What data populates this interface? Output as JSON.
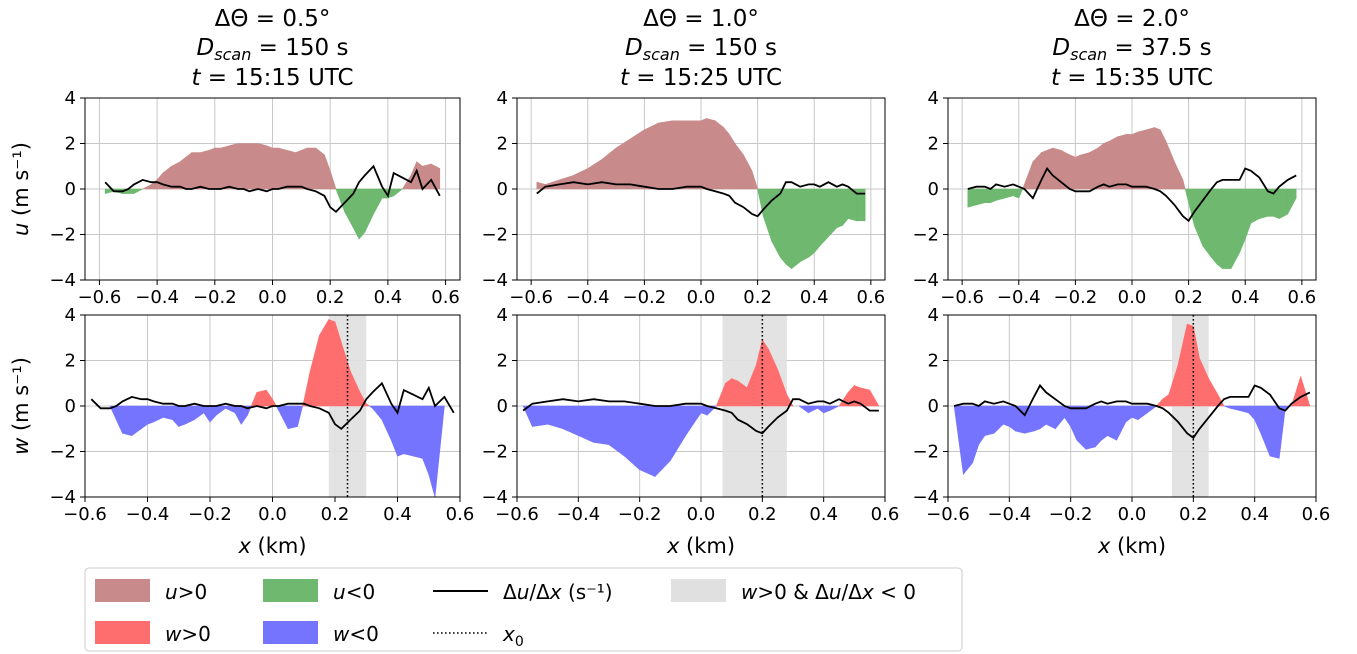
{
  "chart_data": [
    {
      "type": "area",
      "panel": "u-0.5",
      "title": [
        "ΔΘ = 0.5°",
        "Dscan = 150 s",
        "t = 15:15 UTC"
      ],
      "ylabel": "u (m s⁻¹)",
      "xlim": [
        -0.65,
        0.65
      ],
      "ylim": [
        -4,
        4
      ],
      "xticks": [
        -0.6,
        -0.4,
        -0.2,
        0.0,
        0.2,
        0.4,
        0.6
      ],
      "yticks": [
        4,
        2,
        0,
        -2,
        -4
      ],
      "x": [
        -0.58,
        -0.55,
        -0.52,
        -0.5,
        -0.48,
        -0.45,
        -0.42,
        -0.4,
        -0.38,
        -0.35,
        -0.32,
        -0.3,
        -0.28,
        -0.25,
        -0.22,
        -0.2,
        -0.18,
        -0.15,
        -0.12,
        -0.1,
        -0.08,
        -0.05,
        -0.02,
        0.0,
        0.02,
        0.05,
        0.08,
        0.1,
        0.12,
        0.15,
        0.18,
        0.2,
        0.22,
        0.25,
        0.28,
        0.3,
        0.32,
        0.35,
        0.38,
        0.4,
        0.42,
        0.45,
        0.48,
        0.5,
        0.52,
        0.55,
        0.58
      ],
      "series": [
        {
          "key": "u",
          "values": [
            -0.2,
            -0.1,
            -0.2,
            -0.2,
            -0.2,
            0.0,
            0.2,
            0.4,
            0.7,
            1.0,
            1.2,
            1.4,
            1.6,
            1.6,
            1.7,
            1.8,
            1.8,
            1.9,
            2.0,
            2.0,
            2.0,
            2.0,
            1.9,
            1.8,
            1.8,
            1.7,
            1.6,
            1.7,
            1.8,
            1.8,
            1.5,
            0.8,
            0.0,
            -1.0,
            -1.7,
            -2.2,
            -1.9,
            -1.1,
            -0.4,
            -0.4,
            -0.3,
            0.0,
            0.6,
            1.2,
            1.0,
            1.1,
            0.9
          ]
        },
        {
          "key": "dudx",
          "values": [
            0.3,
            -0.1,
            -0.1,
            0.0,
            0.2,
            0.4,
            0.3,
            0.3,
            0.2,
            0.1,
            0.1,
            0.0,
            0.0,
            0.1,
            0.0,
            0.0,
            0.0,
            0.1,
            0.0,
            0.0,
            -0.1,
            0.0,
            -0.1,
            0.0,
            0.0,
            0.1,
            0.1,
            0.1,
            0.0,
            -0.1,
            -0.3,
            -0.8,
            -1.0,
            -0.6,
            -0.2,
            0.3,
            0.6,
            1.0,
            0.1,
            -0.3,
            0.7,
            0.5,
            0.3,
            0.8,
            0.0,
            0.4,
            -0.3
          ]
        }
      ]
    },
    {
      "type": "area",
      "panel": "u-1.0",
      "title": [
        "ΔΘ = 1.0°",
        "Dscan = 150 s",
        "t = 15:25 UTC"
      ],
      "xlim": [
        -0.65,
        0.65
      ],
      "ylim": [
        -4,
        4
      ],
      "xticks": [
        -0.6,
        -0.4,
        -0.2,
        0.0,
        0.2,
        0.4,
        0.6
      ],
      "yticks": [
        4,
        2,
        0,
        -2,
        -4
      ],
      "x": [
        -0.58,
        -0.55,
        -0.5,
        -0.45,
        -0.4,
        -0.35,
        -0.3,
        -0.25,
        -0.2,
        -0.15,
        -0.1,
        -0.05,
        0.0,
        0.02,
        0.05,
        0.08,
        0.1,
        0.12,
        0.15,
        0.18,
        0.2,
        0.22,
        0.25,
        0.28,
        0.3,
        0.32,
        0.35,
        0.38,
        0.4,
        0.42,
        0.45,
        0.48,
        0.5,
        0.52,
        0.55,
        0.58
      ],
      "series": [
        {
          "key": "u",
          "values": [
            0.3,
            0.2,
            0.4,
            0.6,
            0.9,
            1.3,
            1.8,
            2.2,
            2.6,
            2.9,
            3.0,
            3.0,
            3.0,
            3.1,
            3.0,
            2.7,
            2.4,
            2.0,
            1.5,
            0.8,
            0.0,
            -1.2,
            -2.3,
            -3.0,
            -3.3,
            -3.5,
            -3.2,
            -3.0,
            -2.8,
            -2.5,
            -2.1,
            -1.7,
            -1.6,
            -1.3,
            -1.4,
            -1.4
          ]
        },
        {
          "key": "dudx",
          "values": [
            -0.2,
            0.1,
            0.2,
            0.3,
            0.2,
            0.3,
            0.2,
            0.2,
            0.1,
            0.0,
            0.0,
            0.1,
            0.1,
            0.0,
            -0.1,
            -0.2,
            -0.3,
            -0.6,
            -0.8,
            -1.1,
            -1.2,
            -0.9,
            -0.5,
            -0.2,
            0.3,
            0.3,
            0.1,
            0.2,
            0.2,
            0.1,
            0.3,
            0.1,
            0.2,
            0.1,
            -0.2,
            -0.2
          ]
        }
      ]
    },
    {
      "type": "area",
      "panel": "u-2.0",
      "title": [
        "ΔΘ = 2.0°",
        "Dscan = 37.5 s",
        "t = 15:35 UTC"
      ],
      "xlim": [
        -0.65,
        0.65
      ],
      "ylim": [
        -4,
        4
      ],
      "xticks": [
        -0.6,
        -0.4,
        -0.2,
        0.0,
        0.2,
        0.4,
        0.6
      ],
      "yticks": [
        4,
        2,
        0,
        -2,
        -4
      ],
      "x": [
        -0.58,
        -0.55,
        -0.52,
        -0.5,
        -0.48,
        -0.45,
        -0.42,
        -0.4,
        -0.38,
        -0.35,
        -0.32,
        -0.3,
        -0.28,
        -0.25,
        -0.22,
        -0.2,
        -0.18,
        -0.15,
        -0.12,
        -0.1,
        -0.08,
        -0.05,
        -0.02,
        0.0,
        0.02,
        0.05,
        0.08,
        0.1,
        0.12,
        0.15,
        0.18,
        0.2,
        0.22,
        0.25,
        0.28,
        0.3,
        0.32,
        0.35,
        0.38,
        0.4,
        0.42,
        0.45,
        0.48,
        0.5,
        0.52,
        0.55,
        0.58
      ],
      "series": [
        {
          "key": "u",
          "values": [
            -0.8,
            -0.7,
            -0.6,
            -0.6,
            -0.5,
            -0.4,
            -0.3,
            -0.4,
            0.2,
            1.2,
            1.6,
            1.7,
            1.8,
            1.7,
            1.5,
            1.4,
            1.5,
            1.6,
            1.8,
            2.0,
            2.1,
            2.3,
            2.4,
            2.4,
            2.5,
            2.6,
            2.7,
            2.6,
            2.1,
            1.2,
            0.4,
            -0.6,
            -1.6,
            -2.5,
            -3.0,
            -3.3,
            -3.5,
            -3.5,
            -2.8,
            -2.2,
            -1.5,
            -1.3,
            -1.2,
            -1.2,
            -1.3,
            -1.1,
            -0.4
          ]
        },
        {
          "key": "dudx",
          "values": [
            0.0,
            0.1,
            0.1,
            0.0,
            0.2,
            0.1,
            0.2,
            0.1,
            0.0,
            -0.4,
            0.4,
            0.9,
            0.6,
            0.3,
            0.0,
            -0.1,
            -0.1,
            -0.1,
            0.1,
            0.2,
            0.1,
            0.2,
            0.2,
            0.1,
            0.1,
            0.1,
            0.0,
            -0.1,
            -0.3,
            -0.7,
            -1.2,
            -1.4,
            -1.0,
            -0.5,
            0.0,
            0.3,
            0.4,
            0.4,
            0.4,
            0.9,
            0.8,
            0.5,
            -0.1,
            -0.2,
            0.1,
            0.4,
            0.6
          ]
        }
      ]
    },
    {
      "type": "area",
      "panel": "w-0.5",
      "ylabel": "w (m s⁻¹)",
      "xlabel": "x (km)",
      "xlim": [
        -0.6,
        0.6
      ],
      "ylim": [
        -4,
        4
      ],
      "xticks": [
        -0.6,
        -0.4,
        -0.2,
        0.0,
        0.2,
        0.4,
        0.6
      ],
      "yticks": [
        4,
        2,
        0,
        -2,
        -4
      ],
      "shaded_x": [
        0.18,
        0.3
      ],
      "x0": 0.24,
      "x": [
        -0.58,
        -0.55,
        -0.52,
        -0.5,
        -0.48,
        -0.45,
        -0.42,
        -0.4,
        -0.38,
        -0.35,
        -0.32,
        -0.3,
        -0.28,
        -0.25,
        -0.22,
        -0.2,
        -0.18,
        -0.15,
        -0.12,
        -0.1,
        -0.08,
        -0.05,
        -0.02,
        0.0,
        0.02,
        0.05,
        0.08,
        0.1,
        0.12,
        0.15,
        0.18,
        0.2,
        0.22,
        0.25,
        0.28,
        0.3,
        0.32,
        0.35,
        0.38,
        0.4,
        0.42,
        0.45,
        0.48,
        0.5,
        0.52,
        0.55,
        0.58
      ],
      "series": [
        {
          "key": "w",
          "values": [
            0.0,
            0.0,
            0.0,
            -0.6,
            -1.2,
            -1.3,
            -1.0,
            -0.8,
            -0.7,
            -0.5,
            -0.6,
            -0.9,
            -0.8,
            -0.6,
            -0.3,
            -0.7,
            -0.4,
            -0.1,
            -0.3,
            -0.8,
            -0.4,
            0.6,
            0.7,
            0.3,
            -0.2,
            -1.0,
            -0.9,
            0.2,
            1.5,
            3.1,
            3.8,
            3.7,
            2.8,
            1.5,
            0.6,
            0.1,
            -0.1,
            -0.6,
            -1.5,
            -2.2,
            -2.1,
            -2.2,
            -2.3,
            -3.0,
            -4.0,
            0.0,
            0.0
          ]
        },
        {
          "key": "dudx",
          "values": [
            0.3,
            -0.1,
            -0.1,
            0.0,
            0.2,
            0.4,
            0.3,
            0.3,
            0.2,
            0.1,
            0.1,
            0.0,
            0.0,
            0.1,
            0.0,
            0.0,
            0.0,
            0.1,
            0.0,
            0.0,
            -0.1,
            0.0,
            -0.1,
            0.0,
            0.0,
            0.1,
            0.1,
            0.1,
            0.0,
            -0.1,
            -0.3,
            -0.8,
            -1.0,
            -0.6,
            -0.2,
            0.3,
            0.6,
            1.0,
            0.1,
            -0.3,
            0.7,
            0.5,
            0.3,
            0.8,
            0.0,
            0.4,
            -0.3
          ]
        }
      ]
    },
    {
      "type": "area",
      "panel": "w-1.0",
      "xlabel": "x (km)",
      "xlim": [
        -0.6,
        0.6
      ],
      "ylim": [
        -4,
        4
      ],
      "xticks": [
        -0.6,
        -0.4,
        -0.2,
        0.0,
        0.2,
        0.4,
        0.6
      ],
      "yticks": [
        4,
        2,
        0,
        -2,
        -4
      ],
      "shaded_x": [
        0.07,
        0.28
      ],
      "x0": 0.2,
      "x": [
        -0.58,
        -0.55,
        -0.5,
        -0.45,
        -0.4,
        -0.35,
        -0.3,
        -0.25,
        -0.2,
        -0.15,
        -0.1,
        -0.05,
        0.0,
        0.02,
        0.05,
        0.08,
        0.1,
        0.12,
        0.15,
        0.18,
        0.2,
        0.22,
        0.25,
        0.28,
        0.3,
        0.32,
        0.35,
        0.38,
        0.4,
        0.42,
        0.45,
        0.48,
        0.5,
        0.52,
        0.55,
        0.58
      ],
      "series": [
        {
          "key": "w",
          "values": [
            0.0,
            -0.9,
            -0.8,
            -1.0,
            -1.3,
            -1.6,
            -1.7,
            -2.2,
            -2.8,
            -3.1,
            -2.4,
            -1.3,
            -0.3,
            -0.4,
            0.0,
            1.0,
            1.2,
            1.1,
            0.8,
            1.8,
            2.9,
            2.5,
            1.6,
            0.5,
            0.0,
            0.0,
            -0.3,
            -0.1,
            -0.3,
            -0.2,
            0.0,
            0.6,
            0.9,
            0.8,
            0.7,
            0.0
          ]
        },
        {
          "key": "dudx",
          "values": [
            -0.2,
            0.1,
            0.2,
            0.3,
            0.2,
            0.3,
            0.2,
            0.2,
            0.1,
            0.0,
            0.0,
            0.1,
            0.1,
            0.0,
            -0.1,
            -0.2,
            -0.3,
            -0.6,
            -0.8,
            -1.1,
            -1.2,
            -0.9,
            -0.5,
            -0.2,
            0.3,
            0.3,
            0.1,
            0.2,
            0.2,
            0.1,
            0.3,
            0.1,
            0.2,
            0.1,
            -0.2,
            -0.2
          ]
        }
      ]
    },
    {
      "type": "area",
      "panel": "w-2.0",
      "xlabel": "x (km)",
      "xlim": [
        -0.6,
        0.6
      ],
      "ylim": [
        -4,
        4
      ],
      "xticks": [
        -0.6,
        -0.4,
        -0.2,
        0.0,
        0.2,
        0.4,
        0.6
      ],
      "yticks": [
        4,
        2,
        0,
        -2,
        -4
      ],
      "shaded_x": [
        0.13,
        0.25
      ],
      "x0": 0.2,
      "x": [
        -0.58,
        -0.55,
        -0.52,
        -0.5,
        -0.48,
        -0.45,
        -0.42,
        -0.4,
        -0.38,
        -0.35,
        -0.32,
        -0.3,
        -0.28,
        -0.25,
        -0.22,
        -0.2,
        -0.18,
        -0.15,
        -0.12,
        -0.1,
        -0.08,
        -0.05,
        -0.02,
        0.0,
        0.02,
        0.05,
        0.08,
        0.1,
        0.12,
        0.15,
        0.18,
        0.2,
        0.22,
        0.25,
        0.28,
        0.3,
        0.32,
        0.35,
        0.38,
        0.4,
        0.42,
        0.45,
        0.48,
        0.5,
        0.52,
        0.55,
        0.58
      ],
      "series": [
        {
          "key": "w",
          "values": [
            0.0,
            -3.0,
            -2.5,
            -1.7,
            -1.3,
            -1.2,
            -0.8,
            -0.9,
            -1.1,
            -1.2,
            -1.1,
            -1.0,
            -0.8,
            -1.0,
            -0.5,
            -0.9,
            -1.5,
            -1.9,
            -1.8,
            -1.5,
            -1.3,
            -1.5,
            -0.7,
            -0.5,
            -0.6,
            -0.3,
            0.0,
            0.3,
            0.5,
            1.8,
            3.6,
            3.5,
            2.1,
            1.2,
            0.5,
            0.0,
            -0.1,
            -0.2,
            -0.3,
            -0.6,
            -1.2,
            -2.2,
            -2.3,
            -0.1,
            0.0,
            1.3,
            0.0
          ]
        },
        {
          "key": "dudx",
          "values": [
            0.0,
            0.1,
            0.1,
            0.0,
            0.2,
            0.1,
            0.2,
            0.1,
            0.0,
            -0.4,
            0.4,
            0.9,
            0.6,
            0.3,
            0.0,
            -0.1,
            -0.1,
            -0.1,
            0.1,
            0.2,
            0.1,
            0.2,
            0.2,
            0.1,
            0.1,
            0.1,
            0.0,
            -0.1,
            -0.3,
            -0.7,
            -1.2,
            -1.4,
            -1.0,
            -0.5,
            0.0,
            0.3,
            0.4,
            0.4,
            0.4,
            0.9,
            0.8,
            0.5,
            -0.1,
            -0.2,
            0.1,
            0.4,
            0.6
          ]
        }
      ]
    }
  ],
  "legend": {
    "items": [
      {
        "key": "upos",
        "label": "u>0",
        "color": "#c88a8a"
      },
      {
        "key": "uneg",
        "label": "u<0",
        "color": "#6fb86f"
      },
      {
        "key": "dudx",
        "label": "Δu/Δx (s⁻¹)",
        "color": "#000000"
      },
      {
        "key": "shade",
        "label": "w>0 & Δu/Δx < 0",
        "color": "#e0e0e0"
      },
      {
        "key": "wpos",
        "label": "w>0",
        "color": "#ff6e6e"
      },
      {
        "key": "wneg",
        "label": "w<0",
        "color": "#7474ff"
      },
      {
        "key": "x0",
        "label": "x0",
        "color": "#000000"
      }
    ]
  },
  "colors": {
    "upos": "#c88a8a",
    "uneg": "#6fb86f",
    "wpos": "#ff6e6e",
    "wneg": "#7474ff",
    "shade": "#e0e0e0",
    "line": "#000000"
  }
}
